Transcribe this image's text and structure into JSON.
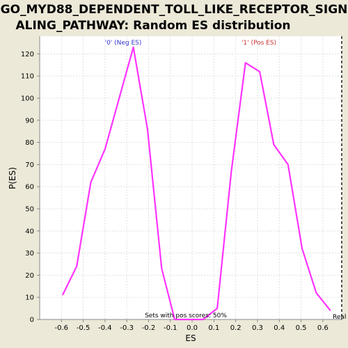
{
  "chart_data": {
    "type": "line",
    "title_line1": "GO_MYD88_DEPENDENT_TOLL_LIKE_RECEPTOR_SIGN",
    "title_line2": "ALING_PATHWAY: Random ES distribution",
    "xlabel": "ES",
    "ylabel": "P(ES)",
    "xlim": [
      -0.7,
      0.69
    ],
    "ylim": [
      0,
      128
    ],
    "xticks": [
      -0.6,
      -0.5,
      -0.4,
      -0.3,
      -0.2,
      -0.1,
      0.0,
      0.1,
      0.2,
      0.3,
      0.4,
      0.5,
      0.6
    ],
    "xtick_labels": [
      "-0.6",
      "-0.5",
      "-0.4",
      "-0.3",
      "-0.2",
      "-0.1",
      "0.0",
      "0.1",
      "0.2",
      "0.3",
      "0.4",
      "0.5",
      "0.6"
    ],
    "yticks": [
      0,
      10,
      20,
      30,
      40,
      50,
      60,
      70,
      80,
      90,
      100,
      110,
      120
    ],
    "ytick_labels": [
      "0",
      "10",
      "20",
      "30",
      "40",
      "50",
      "60",
      "70",
      "80",
      "90",
      "100",
      "110",
      "120"
    ],
    "grid": true,
    "series": [
      {
        "color": "#FF33FF",
        "x": [
          -0.595,
          -0.53,
          -0.465,
          -0.4,
          -0.27,
          -0.205,
          -0.14,
          -0.08,
          -0.015,
          0.05,
          0.115,
          0.18,
          0.245,
          0.31,
          0.375,
          0.44,
          0.505,
          0.57,
          0.635
        ],
        "y": [
          11,
          24,
          62,
          77,
          123,
          86,
          23,
          0,
          0,
          0,
          5,
          67,
          116,
          112,
          79,
          70,
          32,
          12,
          4
        ]
      }
    ],
    "annotations": [
      {
        "text": "'0' (Neg ES)",
        "color": "#3333CC"
      },
      {
        "text": "'1' (Pos ES)",
        "color": "#CC3333"
      },
      {
        "text": "Sets with pos scores: 50%",
        "color": "#000000"
      },
      {
        "text": "Real E",
        "color": "#000000"
      }
    ],
    "real_es_marker": {
      "x": 0.69,
      "style": "dashed"
    }
  }
}
